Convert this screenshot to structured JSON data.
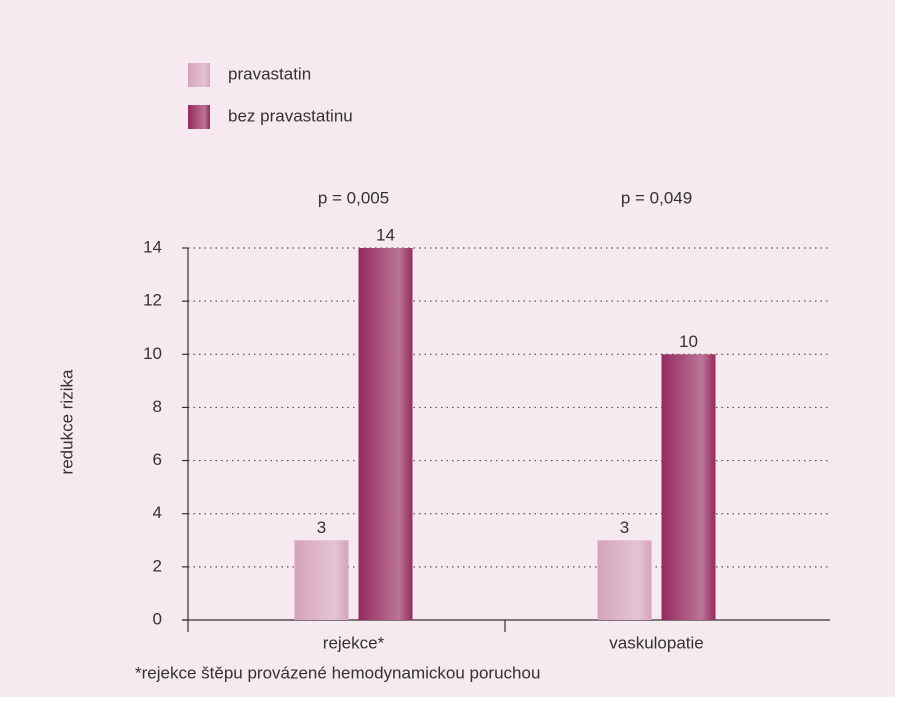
{
  "chart_data": {
    "type": "bar",
    "categories": [
      "rejekce*",
      "vaskulopatie"
    ],
    "series": [
      {
        "name": "pravastatin",
        "color": "#d6a3bc",
        "values": [
          3,
          3
        ]
      },
      {
        "name": "bez pravastatinu",
        "color": "#962a5e",
        "values": [
          14,
          10
        ]
      }
    ],
    "annotations": [
      "p = 0,005",
      "p = 0,049"
    ],
    "ylabel": "redukce rizika",
    "footnote": "*rejekce štěpu provázené hemodynamickou poruchou",
    "ylim": [
      0,
      14
    ],
    "yticks": [
      0,
      2,
      4,
      6,
      8,
      10,
      12,
      14
    ],
    "grid": true,
    "legend": "upper left"
  }
}
